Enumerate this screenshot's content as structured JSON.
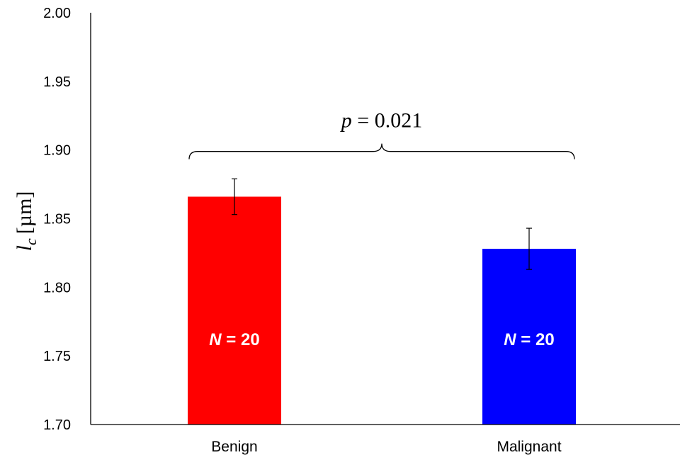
{
  "chart_data": {
    "type": "bar",
    "title": "",
    "xlabel": "",
    "ylabel": {
      "symbol": "l",
      "subscript": "c",
      "unit": "[µm]"
    },
    "ylim": [
      1.7,
      2.0
    ],
    "yticks": [
      "1.70",
      "1.75",
      "1.80",
      "1.85",
      "1.90",
      "1.95",
      "2.00"
    ],
    "categories": [
      "Benign",
      "Malignant"
    ],
    "values": [
      1.866,
      1.828
    ],
    "errors": [
      0.013,
      0.015
    ],
    "colors": [
      "#ff0000",
      "#0000ff"
    ],
    "bar_labels": [
      {
        "prefix": "N",
        "text": " = 20"
      },
      {
        "prefix": "N",
        "text": " = 20"
      }
    ],
    "annotation": {
      "type": "bracket",
      "between": [
        "Benign",
        "Malignant"
      ],
      "y_value": 1.9,
      "label_prefix": "p",
      "label_text": " = 0.021"
    },
    "grid": false,
    "legend": "none"
  }
}
